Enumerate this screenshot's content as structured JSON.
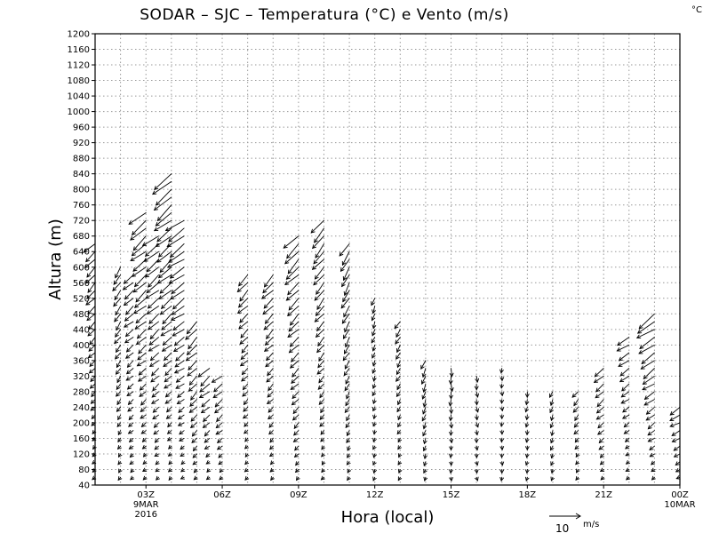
{
  "chart_data": {
    "type": "wind-profile",
    "title": "SODAR – SJC – Temperatura (°C) e Vento (m/s)",
    "corner_unit": "°C",
    "ylabel": "Altura (m)",
    "xlabel": "Hora (local)",
    "ylim": [
      40,
      1200
    ],
    "y_ticks": [
      40,
      80,
      120,
      160,
      200,
      240,
      280,
      320,
      360,
      400,
      440,
      480,
      520,
      560,
      600,
      640,
      680,
      720,
      760,
      800,
      840,
      880,
      920,
      960,
      1000,
      1040,
      1080,
      1120,
      1160,
      1200
    ],
    "xlim": [
      1,
      24
    ],
    "x_ticks": [
      {
        "hour": 3,
        "label": "03Z",
        "date_line1": "9MAR",
        "date_line2": "2016"
      },
      {
        "hour": 6,
        "label": "06Z",
        "date_line1": "",
        "date_line2": ""
      },
      {
        "hour": 9,
        "label": "09Z",
        "date_line1": "",
        "date_line2": ""
      },
      {
        "hour": 12,
        "label": "12Z",
        "date_line1": "",
        "date_line2": ""
      },
      {
        "hour": 15,
        "label": "15Z",
        "date_line1": "",
        "date_line2": ""
      },
      {
        "hour": 18,
        "label": "18Z",
        "date_line1": "",
        "date_line2": ""
      },
      {
        "hour": 21,
        "label": "21Z",
        "date_line1": "",
        "date_line2": ""
      },
      {
        "hour": 24,
        "label": "00Z",
        "date_line1": "10MAR",
        "date_line2": ""
      }
    ],
    "grid": true,
    "reference_vector": {
      "speed": 10,
      "label": "10",
      "unit": "m/s"
    },
    "profiles": [
      {
        "hour": 1.0,
        "top": 660,
        "direction": 225,
        "speed_top": 4
      },
      {
        "hour": 2.0,
        "top": 600,
        "direction": 215,
        "speed_top": 3
      },
      {
        "hour": 2.5,
        "top": 590,
        "direction": 230,
        "speed_top": 3
      },
      {
        "hour": 3.0,
        "top": 750,
        "direction": 230,
        "speed_top": 6
      },
      {
        "hour": 3.5,
        "top": 680,
        "direction": 230,
        "speed_top": 5
      },
      {
        "hour": 4.0,
        "top": 850,
        "direction": 230,
        "speed_top": 7
      },
      {
        "hour": 4.5,
        "top": 730,
        "direction": 235,
        "speed_top": 6
      },
      {
        "hour": 5.0,
        "top": 470,
        "direction": 225,
        "speed_top": 4
      },
      {
        "hour": 5.5,
        "top": 350,
        "direction": 230,
        "speed_top": 4
      },
      {
        "hour": 6.0,
        "top": 330,
        "direction": 230,
        "speed_top": 3
      },
      {
        "hour": 7.0,
        "top": 580,
        "direction": 225,
        "speed_top": 4
      },
      {
        "hour": 8.0,
        "top": 590,
        "direction": 225,
        "speed_top": 4
      },
      {
        "hour": 9.0,
        "top": 680,
        "direction": 225,
        "speed_top": 5
      },
      {
        "hour": 10.0,
        "top": 720,
        "direction": 220,
        "speed_top": 5
      },
      {
        "hour": 11.0,
        "top": 660,
        "direction": 210,
        "speed_top": 4
      },
      {
        "hour": 12.0,
        "top": 530,
        "direction": 200,
        "speed_top": 2
      },
      {
        "hour": 13.0,
        "top": 460,
        "direction": 210,
        "speed_top": 2
      },
      {
        "hour": 14.0,
        "top": 370,
        "direction": 200,
        "speed_top": 2
      },
      {
        "hour": 15.0,
        "top": 340,
        "direction": 180,
        "speed_top": 2
      },
      {
        "hour": 16.0,
        "top": 330,
        "direction": 170,
        "speed_top": 1
      },
      {
        "hour": 17.0,
        "top": 340,
        "direction": 180,
        "speed_top": 1
      },
      {
        "hour": 18.0,
        "top": 290,
        "direction": 190,
        "speed_top": 1
      },
      {
        "hour": 19.0,
        "top": 290,
        "direction": 200,
        "speed_top": 1
      },
      {
        "hour": 20.0,
        "top": 290,
        "direction": 220,
        "speed_top": 2
      },
      {
        "hour": 21.0,
        "top": 350,
        "direction": 230,
        "speed_top": 3
      },
      {
        "hour": 22.0,
        "top": 420,
        "direction": 235,
        "speed_top": 4
      },
      {
        "hour": 23.0,
        "top": 480,
        "direction": 235,
        "speed_top": 6
      },
      {
        "hour": 24.0,
        "top": 250,
        "direction": 240,
        "speed_top": 3
      }
    ]
  }
}
